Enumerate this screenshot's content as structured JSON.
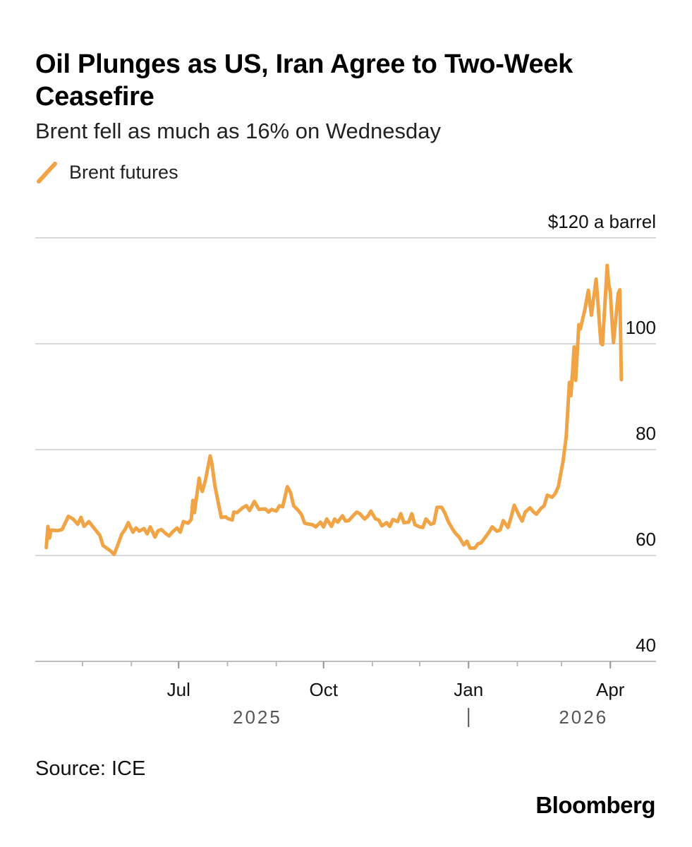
{
  "header": {
    "title": "Oil Plunges as US, Iran Agree to Two-Week Ceasefire",
    "subtitle": "Brent fell as much as 16% on Wednesday"
  },
  "footer": {
    "source": "Source: ICE",
    "brand": "Bloomberg"
  },
  "chart_data": {
    "type": "line",
    "title": "Oil Plunges as US, Iran Agree to Two-Week Ceasefire",
    "subtitle": "Brent fell as much as 16% on Wednesday",
    "ylabel": "$120 a barrel",
    "xlabel": "",
    "ylim": [
      40,
      120
    ],
    "y_ticks": [
      {
        "value": 120,
        "label": "$120 a barrel"
      },
      {
        "value": 100,
        "label": "100"
      },
      {
        "value": 80,
        "label": "80"
      },
      {
        "value": 60,
        "label": "60"
      },
      {
        "value": 40,
        "label": "40"
      }
    ],
    "x_range": [
      "2025-04-01",
      "2026-04-30"
    ],
    "x_month_ticks": [
      "2025-05-01",
      "2025-06-01",
      "2025-07-01",
      "2025-08-01",
      "2025-09-01",
      "2025-10-01",
      "2025-11-01",
      "2025-12-01",
      "2026-01-01",
      "2026-02-01",
      "2026-03-01",
      "2026-04-01"
    ],
    "x_labels": [
      {
        "date": "2025-07-01",
        "label": "Jul"
      },
      {
        "date": "2025-10-01",
        "label": "Oct"
      },
      {
        "date": "2026-01-01",
        "label": "Jan"
      },
      {
        "date": "2026-04-01",
        "label": "Apr"
      }
    ],
    "year_labels": [
      {
        "date": "2025-08-20",
        "label": "2025"
      },
      {
        "date": "2026-03-15",
        "label": "2026"
      }
    ],
    "year_divider": "2026-01-01",
    "grid": true,
    "legend_position": "top-left",
    "series": [
      {
        "name": "Brent futures",
        "color": "#f0a445",
        "points": [
          [
            "2025-04-08",
            61.5
          ],
          [
            "2025-04-09",
            65.5
          ],
          [
            "2025-04-10",
            63.3
          ],
          [
            "2025-04-11",
            64.8
          ],
          [
            "2025-04-15",
            64.7
          ],
          [
            "2025-04-18",
            64.9
          ],
          [
            "2025-04-22",
            67.4
          ],
          [
            "2025-04-25",
            66.9
          ],
          [
            "2025-04-28",
            65.9
          ],
          [
            "2025-04-30",
            67.2
          ],
          [
            "2025-05-02",
            65.5
          ],
          [
            "2025-05-05",
            66.4
          ],
          [
            "2025-05-08",
            65.3
          ],
          [
            "2025-05-12",
            63.8
          ],
          [
            "2025-05-14",
            61.9
          ],
          [
            "2025-05-19",
            60.8
          ],
          [
            "2025-05-21",
            60.2
          ],
          [
            "2025-05-23",
            61.7
          ],
          [
            "2025-05-26",
            64.1
          ],
          [
            "2025-05-28",
            64.9
          ],
          [
            "2025-05-30",
            66.2
          ],
          [
            "2025-06-02",
            64.4
          ],
          [
            "2025-06-04",
            65.2
          ],
          [
            "2025-06-06",
            64.6
          ],
          [
            "2025-06-09",
            65.1
          ],
          [
            "2025-06-11",
            64.1
          ],
          [
            "2025-06-13",
            65.4
          ],
          [
            "2025-06-16",
            63.5
          ],
          [
            "2025-06-18",
            64.7
          ],
          [
            "2025-06-20",
            64.9
          ],
          [
            "2025-06-23",
            64.1
          ],
          [
            "2025-06-25",
            63.7
          ],
          [
            "2025-06-27",
            64.4
          ],
          [
            "2025-06-30",
            65.2
          ],
          [
            "2025-07-02",
            64.4
          ],
          [
            "2025-07-04",
            66.4
          ],
          [
            "2025-07-07",
            66.1
          ],
          [
            "2025-07-09",
            66.8
          ],
          [
            "2025-07-10",
            70.4
          ],
          [
            "2025-07-11",
            68.1
          ],
          [
            "2025-07-14",
            74.6
          ],
          [
            "2025-07-15",
            72.9
          ],
          [
            "2025-07-16",
            72.1
          ],
          [
            "2025-07-18",
            74.2
          ],
          [
            "2025-07-21",
            78.8
          ],
          [
            "2025-07-22",
            77.5
          ],
          [
            "2025-07-24",
            73.2
          ],
          [
            "2025-07-28",
            67.2
          ],
          [
            "2025-07-31",
            67.3
          ],
          [
            "2025-08-01",
            67.0
          ],
          [
            "2025-08-04",
            66.7
          ],
          [
            "2025-08-05",
            68.2
          ],
          [
            "2025-08-07",
            68.1
          ],
          [
            "2025-08-11",
            69.1
          ],
          [
            "2025-08-13",
            69.4
          ],
          [
            "2025-08-15",
            68.5
          ],
          [
            "2025-08-18",
            70.2
          ],
          [
            "2025-08-21",
            68.7
          ],
          [
            "2025-08-25",
            68.8
          ],
          [
            "2025-08-27",
            68.2
          ],
          [
            "2025-08-29",
            68.7
          ],
          [
            "2025-09-01",
            68.4
          ],
          [
            "2025-09-03",
            69.4
          ],
          [
            "2025-09-05",
            69.2
          ],
          [
            "2025-09-08",
            73.0
          ],
          [
            "2025-09-10",
            71.9
          ],
          [
            "2025-09-12",
            69.4
          ],
          [
            "2025-09-15",
            68.5
          ],
          [
            "2025-09-17",
            67.7
          ],
          [
            "2025-09-19",
            66.1
          ],
          [
            "2025-09-22",
            65.9
          ],
          [
            "2025-09-24",
            65.8
          ],
          [
            "2025-09-26",
            65.4
          ],
          [
            "2025-09-29",
            66.3
          ],
          [
            "2025-10-01",
            65.4
          ],
          [
            "2025-10-03",
            66.9
          ],
          [
            "2025-10-06",
            65.5
          ],
          [
            "2025-10-08",
            66.9
          ],
          [
            "2025-10-10",
            66.3
          ],
          [
            "2025-10-13",
            67.5
          ],
          [
            "2025-10-15",
            66.5
          ],
          [
            "2025-10-17",
            66.6
          ],
          [
            "2025-10-20",
            67.6
          ],
          [
            "2025-10-22",
            68.2
          ],
          [
            "2025-10-24",
            67.9
          ],
          [
            "2025-10-27",
            66.9
          ],
          [
            "2025-10-29",
            67.4
          ],
          [
            "2025-10-31",
            68.4
          ],
          [
            "2025-11-03",
            66.9
          ],
          [
            "2025-11-05",
            66.7
          ],
          [
            "2025-11-07",
            65.6
          ],
          [
            "2025-11-10",
            66.2
          ],
          [
            "2025-11-12",
            65.5
          ],
          [
            "2025-11-14",
            66.8
          ],
          [
            "2025-11-17",
            66.4
          ],
          [
            "2025-11-19",
            67.9
          ],
          [
            "2025-11-21",
            66.2
          ],
          [
            "2025-11-24",
            66.3
          ],
          [
            "2025-11-26",
            67.9
          ],
          [
            "2025-11-28",
            65.8
          ],
          [
            "2025-12-01",
            65.4
          ],
          [
            "2025-12-03",
            65.3
          ],
          [
            "2025-12-05",
            66.9
          ],
          [
            "2025-12-08",
            65.9
          ],
          [
            "2025-12-10",
            66.1
          ],
          [
            "2025-12-12",
            69.1
          ],
          [
            "2025-12-15",
            69.1
          ],
          [
            "2025-12-17",
            68.0
          ],
          [
            "2025-12-19",
            66.5
          ],
          [
            "2025-12-22",
            64.9
          ],
          [
            "2025-12-24",
            64.1
          ],
          [
            "2025-12-26",
            63.5
          ],
          [
            "2025-12-29",
            62.0
          ],
          [
            "2025-12-31",
            62.7
          ],
          [
            "2026-01-02",
            61.4
          ],
          [
            "2026-01-05",
            61.4
          ],
          [
            "2026-01-07",
            62.2
          ],
          [
            "2026-01-09",
            62.4
          ],
          [
            "2026-01-12",
            63.6
          ],
          [
            "2026-01-14",
            64.4
          ],
          [
            "2026-01-16",
            65.4
          ],
          [
            "2026-01-19",
            64.6
          ],
          [
            "2026-01-21",
            64.8
          ],
          [
            "2026-01-23",
            66.6
          ],
          [
            "2026-01-26",
            65.3
          ],
          [
            "2026-01-28",
            67.2
          ],
          [
            "2026-01-30",
            69.5
          ],
          [
            "2026-02-02",
            67.6
          ],
          [
            "2026-02-04",
            66.5
          ],
          [
            "2026-02-06",
            68.2
          ],
          [
            "2026-02-09",
            69.0
          ],
          [
            "2026-02-11",
            68.3
          ],
          [
            "2026-02-13",
            67.8
          ],
          [
            "2026-02-16",
            68.9
          ],
          [
            "2026-02-18",
            69.4
          ],
          [
            "2026-02-20",
            71.4
          ],
          [
            "2026-02-23",
            71.0
          ],
          [
            "2026-02-25",
            71.7
          ],
          [
            "2026-02-27",
            73.0
          ],
          [
            "2026-03-02",
            77.8
          ],
          [
            "2026-03-04",
            82.5
          ],
          [
            "2026-03-06",
            92.7
          ],
          [
            "2026-03-07",
            90.2
          ],
          [
            "2026-03-09",
            99.4
          ],
          [
            "2026-03-10",
            93.1
          ],
          [
            "2026-03-12",
            103.6
          ],
          [
            "2026-03-13",
            102.8
          ],
          [
            "2026-03-16",
            106.7
          ],
          [
            "2026-03-18",
            110.1
          ],
          [
            "2026-03-20",
            105.4
          ],
          [
            "2026-03-23",
            112.2
          ],
          [
            "2026-03-24",
            108.3
          ],
          [
            "2026-03-26",
            100.1
          ],
          [
            "2026-03-27",
            99.8
          ],
          [
            "2026-03-30",
            114.8
          ],
          [
            "2026-03-31",
            111.2
          ],
          [
            "2026-04-01",
            109.8
          ],
          [
            "2026-04-02",
            104.5
          ],
          [
            "2026-04-03",
            100.2
          ],
          [
            "2026-04-06",
            109.5
          ],
          [
            "2026-04-07",
            110.2
          ],
          [
            "2026-04-08",
            93.2
          ]
        ]
      }
    ]
  }
}
